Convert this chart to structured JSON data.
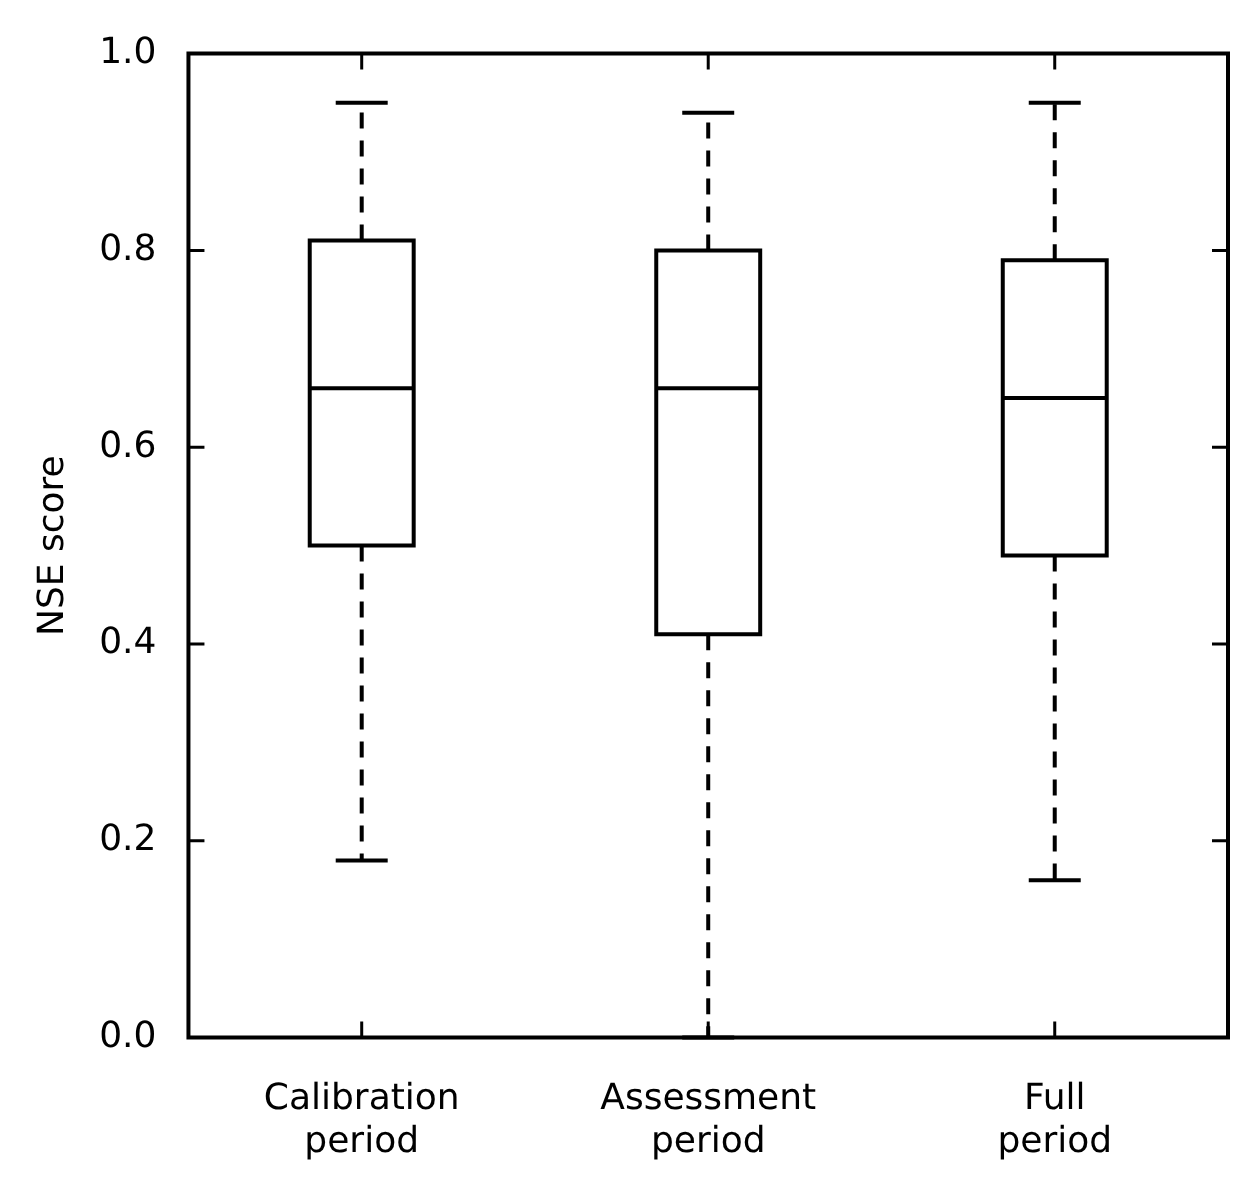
{
  "chart_data": {
    "type": "box",
    "ylabel": "NSE score",
    "categories": [
      "Calibration period",
      "Assessment period",
      "Full period"
    ],
    "boxes": [
      {
        "low": 0.18,
        "q1": 0.5,
        "median": 0.66,
        "q3": 0.81,
        "high": 0.95
      },
      {
        "low": 0.0,
        "q1": 0.41,
        "median": 0.66,
        "q3": 0.8,
        "high": 0.94
      },
      {
        "low": 0.16,
        "q1": 0.49,
        "median": 0.65,
        "q3": 0.79,
        "high": 0.95
      }
    ],
    "ylim": [
      0,
      1
    ],
    "yticks": [
      {
        "value": 0,
        "label": "0.0"
      },
      0.2,
      0.4,
      0.6,
      0.8,
      {
        "value": 1,
        "label": "1.0"
      }
    ],
    "grid": false,
    "legend": false
  }
}
